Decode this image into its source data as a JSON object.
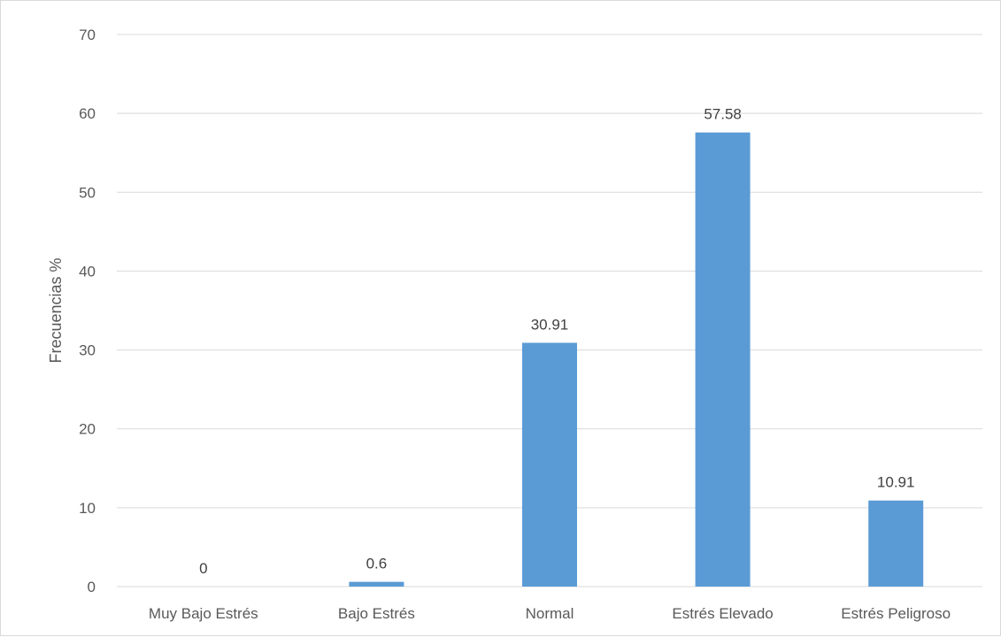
{
  "chart_data": {
    "type": "bar",
    "title": "",
    "xlabel": "",
    "ylabel": "Frecuencias %",
    "categories": [
      "Muy Bajo Estrés",
      "Bajo Estrés",
      "Normal",
      "Estrés Elevado",
      "Estrés Peligroso"
    ],
    "values": [
      0,
      0.6,
      30.91,
      57.58,
      10.91
    ],
    "data_labels": [
      "0",
      "0.6",
      "30.91",
      "57.58",
      "10.91"
    ],
    "ylim": [
      0,
      70
    ],
    "yticks": [
      0,
      10,
      20,
      30,
      40,
      50,
      60,
      70
    ],
    "ytick_labels": [
      "0",
      "10",
      "20",
      "30",
      "40",
      "50",
      "60",
      "70"
    ],
    "grid": true,
    "legend": "none",
    "bar_color": "#5b9bd5",
    "grid_color": "#d9d9d9"
  }
}
